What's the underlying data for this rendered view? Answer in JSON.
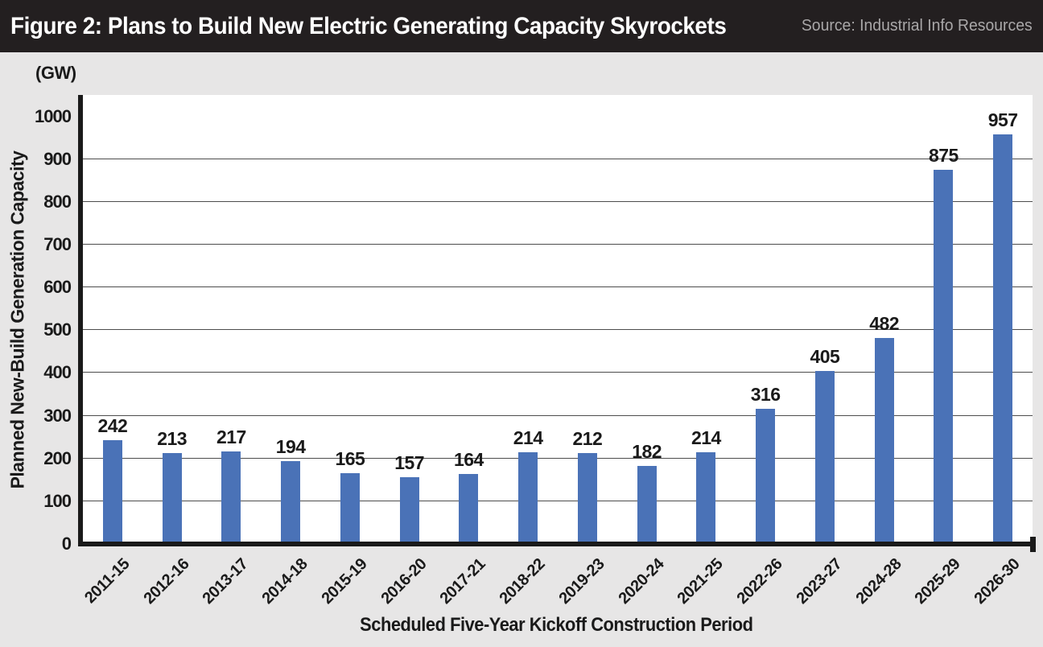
{
  "header": {
    "title": "Figure 2: Plans to Build New Electric Generating Capacity Skyrockets",
    "source": "Source: Industrial Info Resources"
  },
  "chart_data": {
    "type": "bar",
    "unit_label": "(GW)",
    "categories": [
      "2011-15",
      "2012-16",
      "2013-17",
      "2014-18",
      "2015-19",
      "2016-20",
      "2017-21",
      "2018-22",
      "2019-23",
      "2020-24",
      "2021-25",
      "2022-26",
      "2023-27",
      "2024-28",
      "2025-29",
      "2026-30"
    ],
    "values": [
      242,
      213,
      217,
      194,
      165,
      157,
      164,
      214,
      212,
      182,
      214,
      316,
      405,
      482,
      875,
      957
    ],
    "xlabel": "Scheduled Five-Year Kickoff Construction Period",
    "ylabel": "Planned New-Build Generation Capacity",
    "ylim": [
      0,
      1050
    ],
    "ytick_interval": 100,
    "yticks": [
      0,
      100,
      200,
      300,
      400,
      500,
      600,
      700,
      800,
      900,
      1000
    ],
    "gridlines_at": [
      100,
      200,
      300,
      400,
      500,
      600,
      700,
      800,
      900
    ],
    "grid": "horizontal",
    "legend_position": "none",
    "data_labels": true,
    "bar_color": "#4a72b7"
  },
  "colors": {
    "page_bg": "#e7e6e6",
    "header_bg": "#231f20",
    "header_text": "#ffffff",
    "source_text": "#a9a7a8",
    "plot_bg": "#ffffff",
    "bar": "#4a72b7",
    "gridline": "#4d4d4d",
    "axis": "#1a1a1a",
    "text": "#1a1a1a"
  }
}
